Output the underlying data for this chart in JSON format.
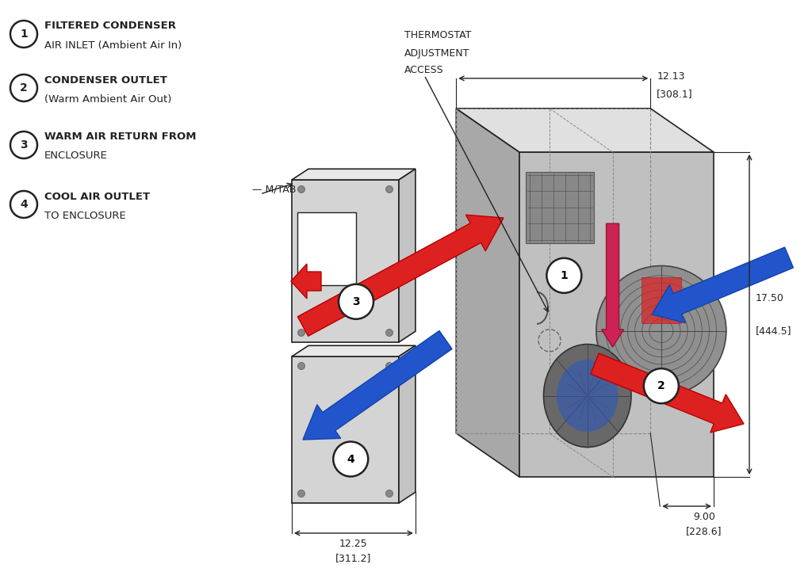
{
  "bg_color": "#ffffff",
  "legend_items": [
    {
      "num": "1",
      "line1": "FILTERED CONDENSER",
      "line2": "AIR INLET (Ambient Air In)"
    },
    {
      "num": "2",
      "line1": "CONDENSER OUTLET",
      "line2": "(Warm Ambient Air Out)"
    },
    {
      "num": "3",
      "line1": "WARM AIR RETURN FROM",
      "line2": "ENCLOSURE"
    },
    {
      "num": "4",
      "line1": "COOL AIR OUTLET",
      "line2": "TO ENCLOSURE"
    }
  ],
  "colors": {
    "red": "#dd2020",
    "blue": "#2255cc",
    "red_dark": "#aa1010",
    "blue_dark": "#1144aa",
    "red_purple": "#8833aa",
    "face_right": "#c0c0c0",
    "face_front": "#d0d0d0",
    "face_top": "#e0e0e0",
    "face_dark": "#a8a8a8",
    "face_inner": "#b8b8b8",
    "door_face": "#d4d4d4",
    "door_top": "#e8e8e8",
    "door_side": "#c4c4c4",
    "outline": "#222222",
    "dashed": "#888888",
    "fan_face": "#909090",
    "fan_dark": "#606060",
    "grille_bg": "#777777"
  },
  "dim_label_size": 9,
  "legend_label_size": 9.5,
  "annot_label_size": 9
}
